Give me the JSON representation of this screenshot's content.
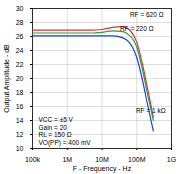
{
  "chart_data": {
    "type": "line",
    "xlabel": "F - Frequency - Hz",
    "ylabel": "Output Amplitude - dB",
    "log": "x",
    "grid": true,
    "x": [
      100000,
      1000000,
      5000000,
      10000000,
      20000000,
      40000000,
      60000000,
      80000000,
      100000000,
      150000000,
      200000000,
      300000000
    ],
    "series": [
      {
        "name": "RF = 620 Ω",
        "color": "#e03030",
        "values": [
          26.9,
          26.9,
          26.9,
          27.0,
          27.3,
          27.4,
          27.0,
          26.2,
          25.2,
          21.8,
          18.8,
          14.5
        ]
      },
      {
        "name": "RF = 220 Ω",
        "color": "#20a040",
        "values": [
          26.5,
          26.5,
          26.5,
          26.6,
          26.8,
          26.7,
          26.2,
          25.5,
          24.5,
          21.0,
          18.0,
          14.0
        ]
      },
      {
        "name": "RF = 1 kΩ",
        "color": "#2040d0",
        "values": [
          26.1,
          26.1,
          26.1,
          26.1,
          26.1,
          25.8,
          25.2,
          24.2,
          23.0,
          19.5,
          16.5,
          12.5
        ]
      }
    ],
    "annotations": [
      "VCC = ±5 V",
      "Gain = 20",
      "RL = 150 Ω",
      "VO(PP) = 400 mV"
    ],
    "xlim": [
      100000,
      1000000000
    ],
    "xticks": [
      {
        "value": 100000,
        "label": "100k"
      },
      {
        "value": 1000000,
        "label": "1M"
      },
      {
        "value": 10000000,
        "label": "10M"
      },
      {
        "value": 100000000,
        "label": "100M"
      },
      {
        "value": 1000000000,
        "label": "1G"
      }
    ],
    "ylim": [
      10,
      30
    ],
    "yticks": [
      10,
      12,
      14,
      16,
      18,
      20,
      22,
      24,
      26,
      28,
      30
    ]
  }
}
